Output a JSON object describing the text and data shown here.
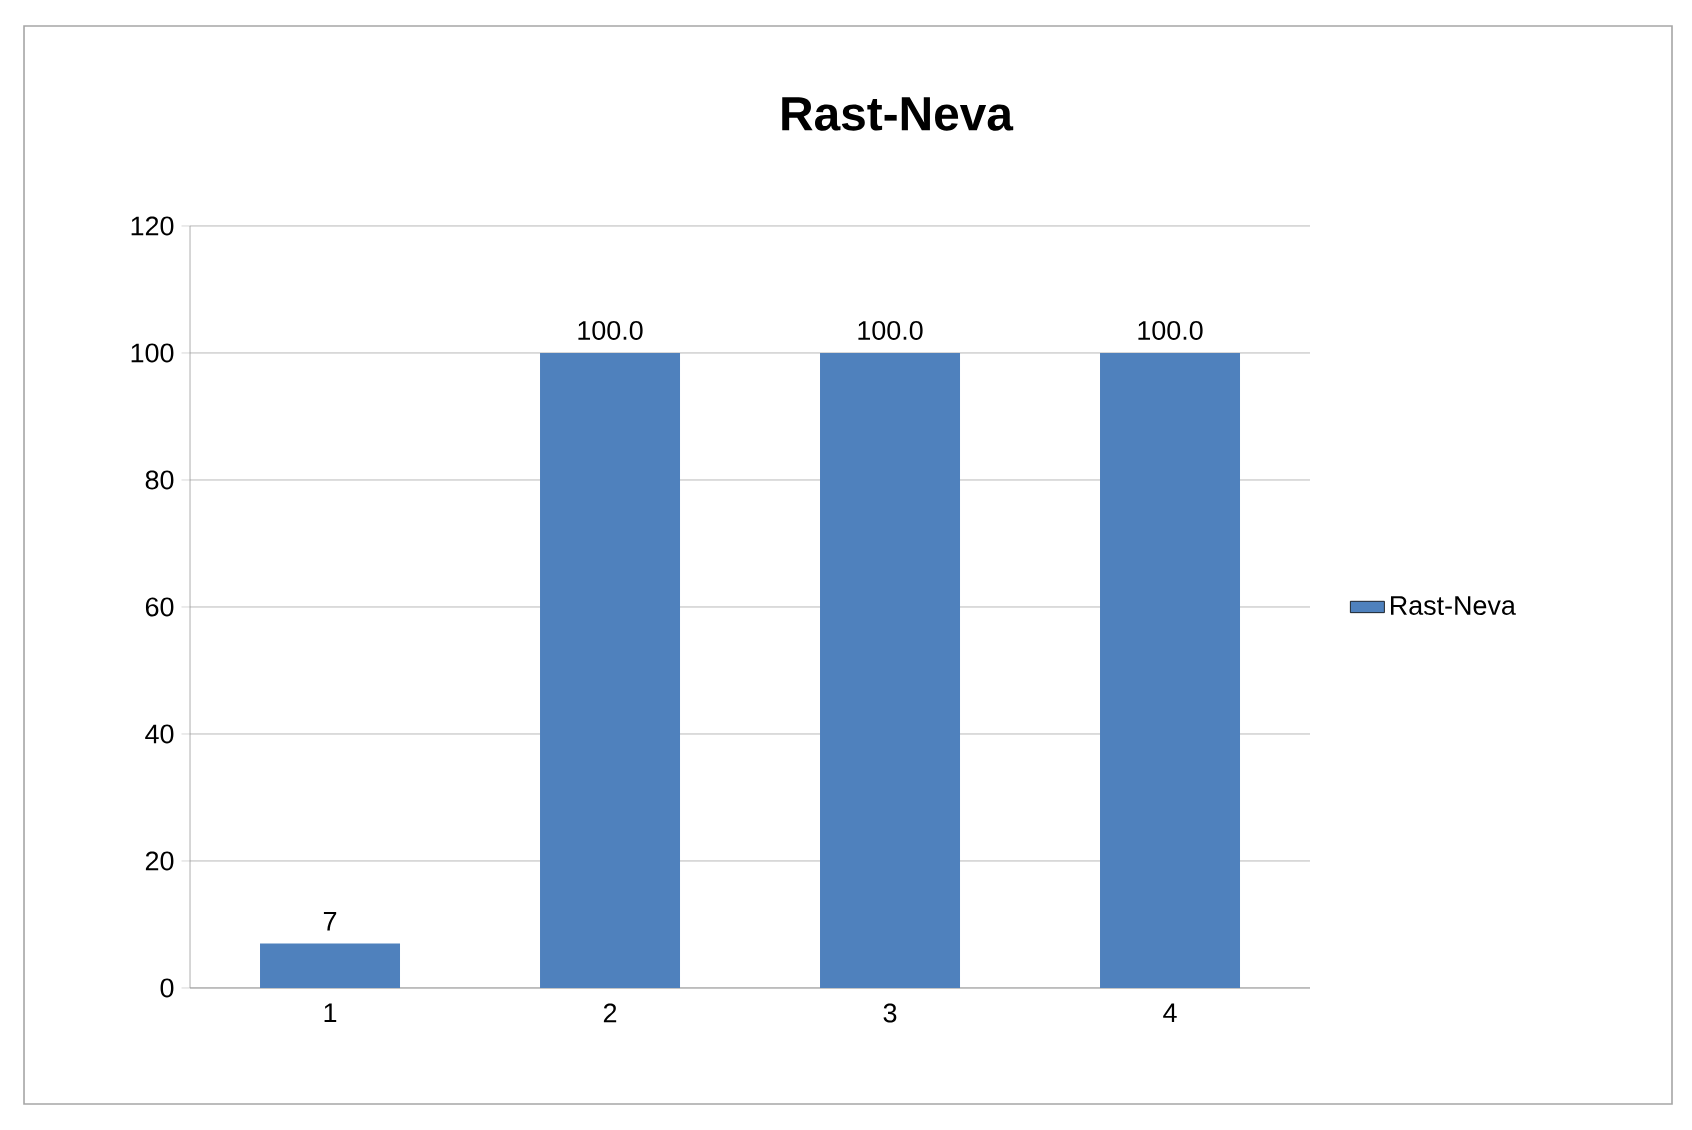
{
  "chart_data": {
    "type": "bar",
    "title": "Rast-Neva",
    "categories": [
      "1",
      "2",
      "3",
      "4"
    ],
    "series": [
      {
        "name": "Rast-Neva",
        "color": "#4f81bd",
        "values": [
          7,
          100,
          100,
          100
        ]
      }
    ],
    "value_labels": [
      "7",
      "100.0",
      "100.0",
      "100.0"
    ],
    "ylim": [
      0,
      120
    ],
    "yticks": [
      0,
      20,
      40,
      60,
      80,
      100,
      120
    ],
    "grid": "y",
    "legend": "right"
  }
}
